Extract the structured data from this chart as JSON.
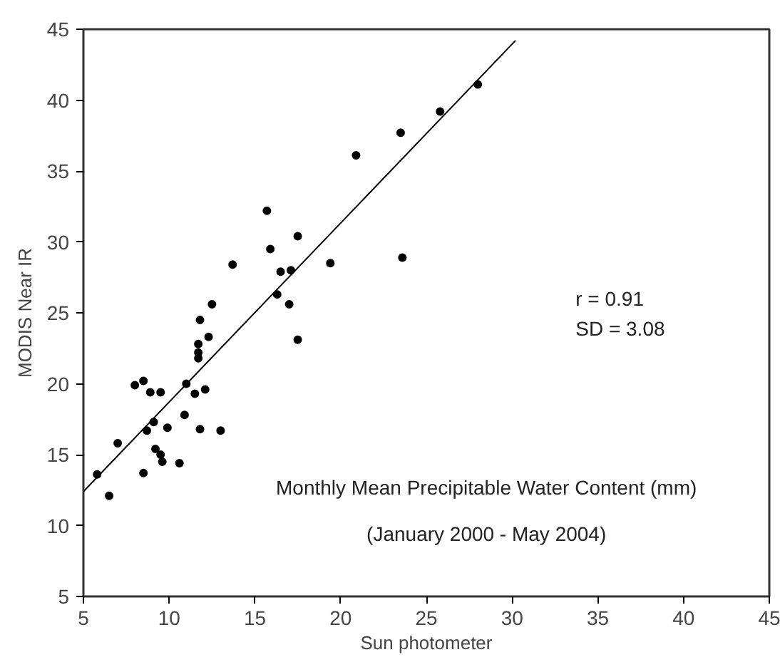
{
  "chart_data": {
    "type": "scatter",
    "xlabel": "Sun photometer",
    "ylabel": "MODIS Near IR",
    "annotations": [
      "Monthly Mean Precipitable Water Content (mm)",
      "(January 2000 - May 2004)",
      "r   = 0.91",
      "SD = 3.08"
    ],
    "series": [
      {
        "color": "#000000",
        "marker": "circle",
        "x": [
          5.8,
          6.5,
          7.0,
          8.0,
          8.5,
          8.9,
          9.5,
          8.5,
          8.7,
          9.1,
          9.2,
          9.5,
          9.6,
          9.9,
          10.6,
          10.9,
          11.0,
          11.5,
          11.8,
          12.1,
          13.0,
          11.7,
          11.7,
          11.7,
          12.3,
          17.5,
          11.8,
          12.5,
          13.7,
          15.7,
          15.9,
          16.3,
          16.5,
          17.0,
          17.1,
          17.5,
          19.4,
          20.9,
          23.5,
          23.6,
          25.8,
          28.0
        ],
        "values": [
          13.6,
          12.1,
          15.8,
          19.9,
          20.2,
          19.4,
          19.4,
          13.7,
          16.7,
          17.3,
          15.4,
          15.0,
          14.5,
          16.9,
          14.4,
          17.8,
          20.0,
          19.3,
          16.8,
          19.6,
          16.7,
          22.8,
          22.2,
          21.8,
          23.3,
          23.1,
          24.5,
          25.6,
          28.4,
          32.2,
          29.5,
          26.3,
          27.9,
          25.6,
          28.0,
          30.4,
          28.5,
          36.1,
          37.7,
          28.9,
          39.2,
          41.1
        ]
      },
      {
        "type": "line",
        "color": "#000000",
        "marker": "none",
        "line_style": "solid",
        "x": [
          5,
          30.2
        ],
        "values": [
          12.4,
          44.2
        ]
      }
    ],
    "xlim": [
      5,
      45
    ],
    "ylim": [
      5,
      45
    ],
    "xticks": [
      5,
      10,
      15,
      20,
      25,
      30,
      35,
      40,
      45
    ],
    "yticks": [
      5,
      10,
      15,
      20,
      25,
      30,
      35,
      40,
      45
    ],
    "grid": false
  }
}
